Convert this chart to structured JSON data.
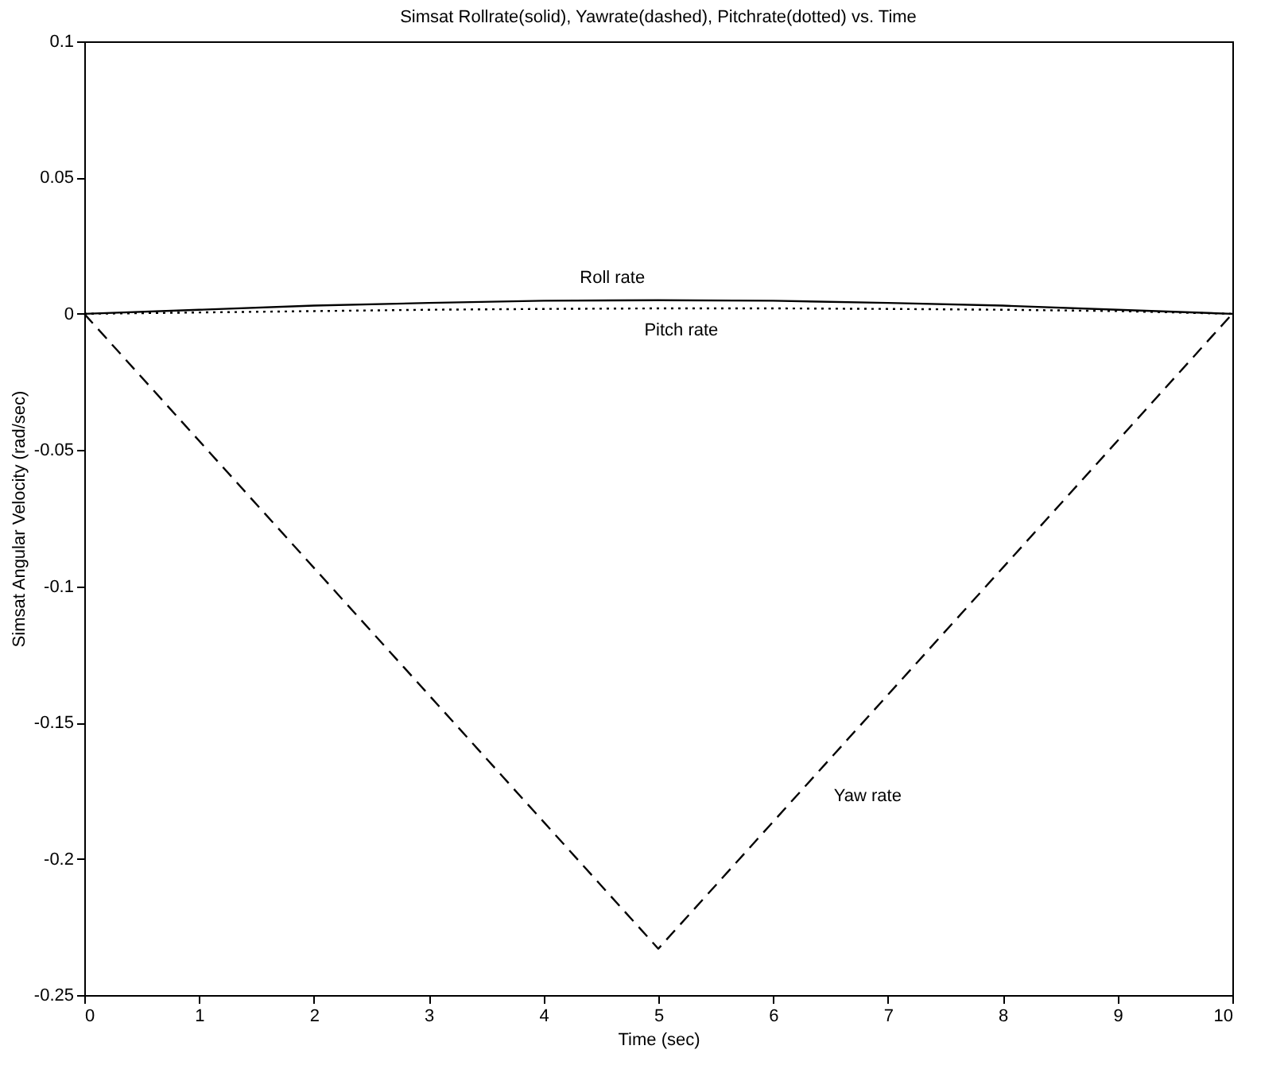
{
  "chart_data": {
    "type": "line",
    "title": "Simsat Rollrate(solid), Yawrate(dashed), Pitchrate(dotted) vs. Time",
    "xlabel": "Time (sec)",
    "ylabel": "Simsat Angular Velocity (rad/sec)",
    "xlim": [
      0,
      10
    ],
    "xticks": [
      0,
      1,
      2,
      3,
      4,
      5,
      6,
      7,
      8,
      9,
      10
    ],
    "ylim": [
      -0.25,
      0.1
    ],
    "yticks": [
      -0.25,
      -0.2,
      -0.15,
      -0.1,
      -0.05,
      0,
      0.05,
      0.1
    ],
    "grid": false,
    "legend": false,
    "marker": "none",
    "series": [
      {
        "name": "Roll rate",
        "color": "#000000",
        "line_style": "solid",
        "x": [
          0,
          1,
          2,
          3,
          4,
          5,
          6,
          7,
          8,
          9,
          10
        ],
        "values": [
          0,
          0.0015,
          0.003,
          0.004,
          0.0048,
          0.005,
          0.0048,
          0.004,
          0.003,
          0.0015,
          0
        ]
      },
      {
        "name": "Yaw rate",
        "color": "#000000",
        "line_style": "dashed",
        "x": [
          0,
          5,
          10
        ],
        "values": [
          0,
          -0.233,
          0
        ]
      },
      {
        "name": "Pitch rate",
        "color": "#000000",
        "line_style": "dotted",
        "x": [
          0,
          1,
          2,
          3,
          4,
          5,
          6,
          7,
          8,
          9,
          10
        ],
        "values": [
          0,
          0.0005,
          0.001,
          0.0015,
          0.0018,
          0.002,
          0.002,
          0.0018,
          0.0015,
          0.001,
          0
        ]
      }
    ]
  }
}
